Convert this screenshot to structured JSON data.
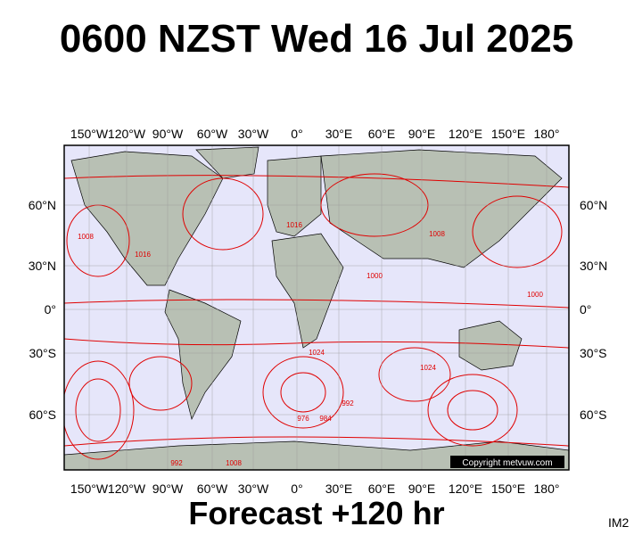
{
  "header": {
    "title": "0600 NZST Wed 16 Jul 2025"
  },
  "longitude_labels": [
    "150°W",
    "120°W",
    "90°W",
    "60°W",
    "30°W",
    "0°",
    "30°E",
    "60°E",
    "90°E",
    "120°E",
    "150°E",
    "180°"
  ],
  "latitude_labels": [
    "60°N",
    "30°N",
    "0°",
    "30°S",
    "60°S"
  ],
  "isobar_labels": [
    "1008",
    "1016",
    "1024",
    "1008",
    "1016",
    "1000",
    "992",
    "984",
    "976",
    "1008",
    "1024",
    "1000",
    "992"
  ],
  "copyright": "Copyright metvuw.com",
  "footer": {
    "forecast": "Forecast +120 hr",
    "badge": "IM2"
  }
}
